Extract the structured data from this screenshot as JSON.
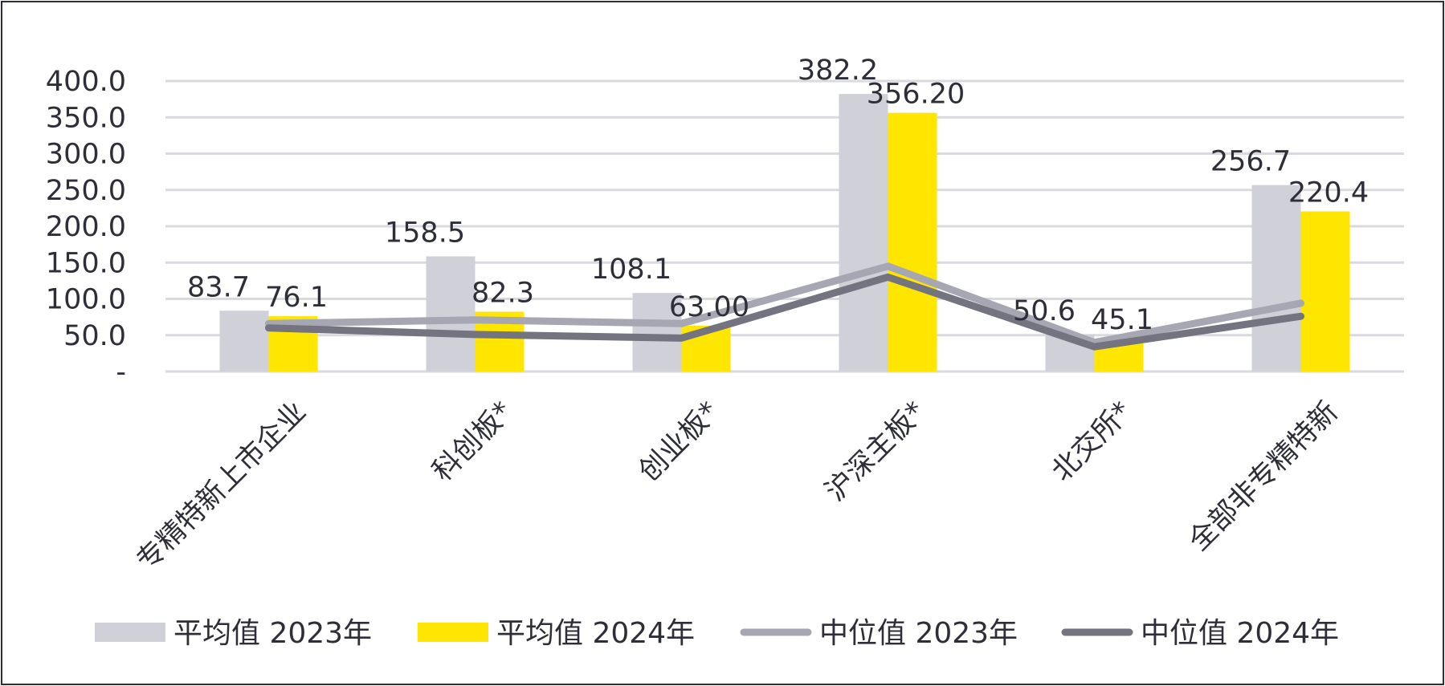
{
  "chart_data": {
    "type": "bar",
    "categories": [
      "专精特新上市企业",
      "科创板*",
      "创业板*",
      "沪深主板*",
      "北交所*",
      "全部非专精特新"
    ],
    "ylim": [
      0,
      400
    ],
    "yticks": [
      {
        "value": 0,
        "label": "-"
      },
      {
        "value": 50,
        "label": "50.0"
      },
      {
        "value": 100,
        "label": "100.0"
      },
      {
        "value": 150,
        "label": "150.0"
      },
      {
        "value": 200,
        "label": "200.0"
      },
      {
        "value": 250,
        "label": "250.0"
      },
      {
        "value": 300,
        "label": "300.0"
      },
      {
        "value": 350,
        "label": "350.0"
      },
      {
        "value": 400,
        "label": "400.0"
      }
    ],
    "grid": true,
    "legend_position": "bottom",
    "bar_series": [
      {
        "name": "平均值 2023年",
        "color": "#d0d0d8",
        "values": [
          83.7,
          158.5,
          108.1,
          382.2,
          50.6,
          256.7
        ],
        "labels": [
          "83.7",
          "158.5",
          "108.1",
          "382.2",
          "50.6",
          "256.7"
        ]
      },
      {
        "name": "平均值 2024年",
        "color": "#ffe600",
        "values": [
          76.1,
          82.3,
          63.0,
          356.2,
          45.1,
          220.4
        ],
        "labels": [
          "76.1",
          "82.3",
          "63.00",
          "356.20",
          "45.1",
          "220.4"
        ]
      }
    ],
    "line_series": [
      {
        "name": "中位值 2023年",
        "color": "#a7a7b3",
        "values": [
          66,
          71,
          66,
          145,
          40,
          94
        ]
      },
      {
        "name": "中位值 2024年",
        "color": "#747480",
        "values": [
          60,
          51,
          46,
          130,
          34,
          76
        ]
      }
    ]
  }
}
